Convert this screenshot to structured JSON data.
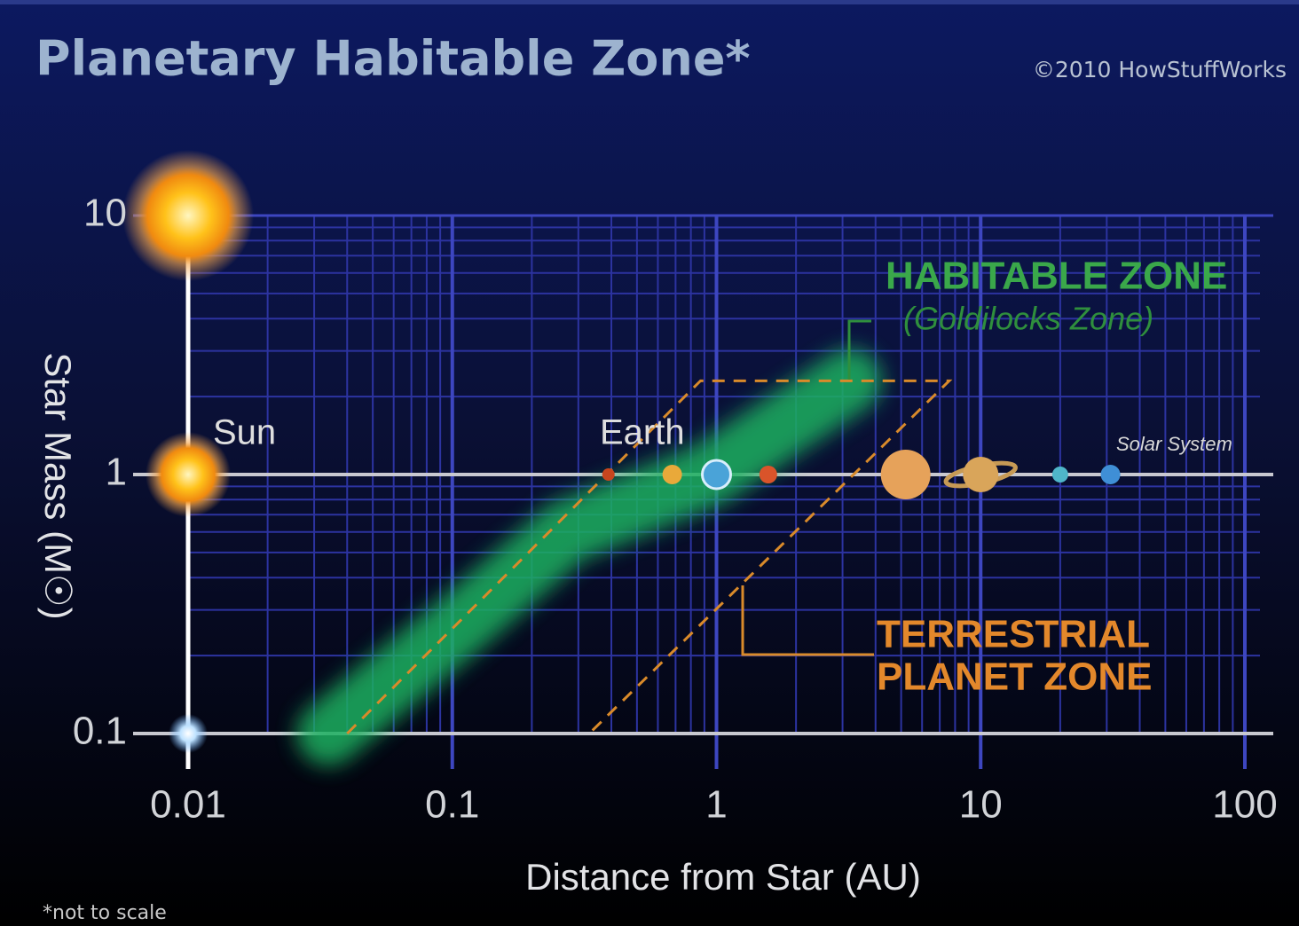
{
  "chart_data": {
    "type": "scatter",
    "title": "Planetary Habitable Zone*",
    "credit": "©2010 HowStuffWorks",
    "footnote": "*not to scale",
    "x_label": "Distance from Star (AU)",
    "y_label": "Star Mass (M☉)",
    "log_x": true,
    "log_y": true,
    "grid": true,
    "minor_grid": true,
    "xlim": [
      0.01,
      100
    ],
    "ylim": [
      0.1,
      10
    ],
    "xticks": [
      0.01,
      0.1,
      1,
      10,
      100
    ],
    "yticks": [
      0.1,
      1,
      10
    ],
    "annotations": {
      "sun": "Sun",
      "earth": "Earth",
      "solar_system": "Solar System",
      "habitable_zone": "HABITABLE ZONE",
      "goldilocks": "(Goldilocks Zone)",
      "terrestrial": [
        "TERRESTRIAL",
        "PLANET ZONE"
      ]
    },
    "stars": {
      "x": [
        0.01,
        0.01,
        0.01
      ],
      "values": [
        10,
        1,
        0.1
      ]
    },
    "planets": {
      "x": [
        0.39,
        0.68,
        1,
        1.57,
        5.2,
        10,
        20,
        31
      ],
      "values": [
        1,
        1,
        1,
        1,
        1,
        1,
        1,
        1
      ],
      "colors": [
        "#c8451e",
        "#e9a93a",
        "#4aa3d8",
        "#d9542a",
        "#e6a25a",
        "#d9a55a",
        "#4fb6c9",
        "#3f8fd6"
      ]
    },
    "habitable_zone": {
      "x": [
        0.034,
        0.11,
        0.27,
        0.94,
        3.2
      ],
      "values": [
        0.1,
        0.27,
        0.6,
        1,
        2.3
      ],
      "color": "#1fb061"
    },
    "terrestrial_zone": {
      "x": [
        0.04,
        0.87,
        7.6,
        0.33
      ],
      "values": [
        0.1,
        2.3,
        2.3,
        0.1
      ],
      "color": "#d98a2a"
    }
  }
}
